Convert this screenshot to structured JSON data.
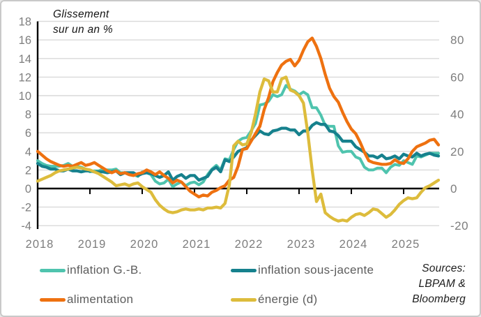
{
  "chart": {
    "title_line1": "Glissement",
    "title_line2": "sur un an %",
    "left_axis": {
      "ticks": [
        18,
        16,
        14,
        12,
        10,
        8,
        6,
        4,
        2,
        0,
        -2,
        -4
      ]
    },
    "right_axis": {
      "ticks": [
        80,
        60,
        40,
        20,
        0,
        -20
      ]
    },
    "x_axis": {
      "years": [
        "2018",
        "2019",
        "2020",
        "2021",
        "2022",
        "2023",
        "2024",
        "2025"
      ]
    }
  },
  "legend": {
    "items": [
      {
        "label": "inflation G.-B.",
        "color": "#4fc4ae"
      },
      {
        "label": "inflation sous-jacente",
        "color": "#16818d"
      },
      {
        "label": "alimentation",
        "color": "#ee7110"
      },
      {
        "label": "énergie (d)",
        "color": "#ddbc3c"
      }
    ]
  },
  "sources": {
    "line1": "Sources:",
    "line2": "LBPAM &",
    "line3": "Bloomberg"
  },
  "chart_data": {
    "type": "line",
    "title": "Glissement sur un an %",
    "x_start": "2018-01",
    "x_end": "2025-09",
    "frequency": "monthly",
    "left_ylim": [
      -4,
      18
    ],
    "right_ylim": [
      -20,
      80
    ],
    "grid": "horizontal",
    "legend_position": "bottom",
    "series": [
      {
        "name": "inflation G.-B.",
        "axis": "left",
        "color": "#4fc4ae",
        "values": [
          3.0,
          2.7,
          2.5,
          2.4,
          2.4,
          2.4,
          2.5,
          2.7,
          2.4,
          2.4,
          2.3,
          2.1,
          1.8,
          1.9,
          1.9,
          2.1,
          2.0,
          2.0,
          2.1,
          1.7,
          1.7,
          1.5,
          1.5,
          1.3,
          1.8,
          1.7,
          1.5,
          0.8,
          0.5,
          0.6,
          1.0,
          0.2,
          0.5,
          0.7,
          0.3,
          0.6,
          0.7,
          0.4,
          0.7,
          1.5,
          2.1,
          2.5,
          2.0,
          3.2,
          3.1,
          4.2,
          5.1,
          5.4,
          5.5,
          6.2,
          7.0,
          9.0,
          9.1,
          9.4,
          10.1,
          9.9,
          10.1,
          11.1,
          10.7,
          10.5,
          10.1,
          10.4,
          10.1,
          8.7,
          8.7,
          7.9,
          6.8,
          6.7,
          6.7,
          4.6,
          3.9,
          4.0,
          4.0,
          3.4,
          3.2,
          2.3,
          2.0,
          2.0,
          2.2,
          2.2,
          1.7,
          2.3,
          2.6,
          2.5,
          3.0,
          2.8,
          2.6,
          3.5,
          3.4,
          3.6,
          3.8,
          3.8,
          3.8
        ]
      },
      {
        "name": "inflation sous-jacente",
        "axis": "left",
        "color": "#16818d",
        "values": [
          2.7,
          2.4,
          2.3,
          2.1,
          2.1,
          1.9,
          1.9,
          2.1,
          1.9,
          1.9,
          1.8,
          1.9,
          1.9,
          1.8,
          1.8,
          1.8,
          1.7,
          1.8,
          1.9,
          1.5,
          1.7,
          1.7,
          1.7,
          1.4,
          1.6,
          1.7,
          1.6,
          1.4,
          1.2,
          1.4,
          1.8,
          0.9,
          1.3,
          1.5,
          1.1,
          1.4,
          1.4,
          0.9,
          1.1,
          1.3,
          2.0,
          2.3,
          1.8,
          3.1,
          2.9,
          3.4,
          4.0,
          4.2,
          4.4,
          5.2,
          5.7,
          6.2,
          5.9,
          5.8,
          6.2,
          6.3,
          6.5,
          6.5,
          6.3,
          6.3,
          5.8,
          6.2,
          6.2,
          6.8,
          7.1,
          6.9,
          6.9,
          6.2,
          6.1,
          5.7,
          5.1,
          5.1,
          5.1,
          4.5,
          4.2,
          3.9,
          3.5,
          3.5,
          3.3,
          3.6,
          3.2,
          3.3,
          3.5,
          3.2,
          3.7,
          3.5,
          3.4,
          3.8,
          3.5,
          3.7,
          3.8,
          3.6,
          3.5
        ]
      },
      {
        "name": "alimentation",
        "axis": "left",
        "color": "#ee7110",
        "values": [
          4.0,
          3.6,
          3.2,
          2.9,
          2.7,
          2.5,
          2.4,
          2.5,
          2.4,
          2.6,
          2.8,
          2.5,
          2.6,
          2.8,
          2.5,
          2.2,
          1.9,
          1.7,
          1.9,
          1.6,
          1.7,
          1.5,
          1.4,
          1.6,
          1.7,
          2.0,
          1.8,
          1.5,
          1.8,
          1.4,
          1.1,
          0.6,
          0.9,
          0.7,
          0.2,
          -0.3,
          -0.6,
          -0.9,
          -0.7,
          -0.8,
          -0.4,
          -0.2,
          0.1,
          0.3,
          0.9,
          1.2,
          2.4,
          4.2,
          4.3,
          5.1,
          5.9,
          6.7,
          8.5,
          9.8,
          11.5,
          12.5,
          13.3,
          13.7,
          13.9,
          13.2,
          13.8,
          14.9,
          15.8,
          16.2,
          15.3,
          14.0,
          12.3,
          10.8,
          9.9,
          9.3,
          8.2,
          7.2,
          6.4,
          5.9,
          5.0,
          3.9,
          3.0,
          2.8,
          2.7,
          2.6,
          2.6,
          2.7,
          3.1,
          2.8,
          2.7,
          3.2,
          4.0,
          4.5,
          4.7,
          4.9,
          5.2,
          5.3,
          4.7
        ]
      },
      {
        "name": "énergie (d)",
        "axis": "right",
        "color": "#ddbc3c",
        "values": [
          4,
          5,
          6,
          7,
          8.5,
          9.5,
          10,
          10.5,
          11,
          11.5,
          11,
          10.5,
          10,
          9,
          8,
          6.5,
          5,
          3.5,
          1.5,
          2,
          2.5,
          1.5,
          2.5,
          3,
          1,
          -0.5,
          -2,
          -6,
          -9,
          -11,
          -12.5,
          -13,
          -12.5,
          -11.5,
          -11,
          -11.5,
          -11.5,
          -11,
          -11.5,
          -10.5,
          -10.5,
          -10,
          -10.5,
          -8,
          2,
          23,
          25.5,
          23.5,
          24,
          30,
          40,
          52,
          59,
          58,
          52,
          52,
          59,
          60,
          53,
          52,
          50,
          46,
          30,
          10,
          -7,
          -3,
          -13,
          -15,
          -16.5,
          -17.5,
          -17,
          -17.5,
          -15.5,
          -14,
          -13.5,
          -14.5,
          -13,
          -11,
          -11.5,
          -13.5,
          -15.5,
          -14,
          -11.5,
          -8.5,
          -6.5,
          -5,
          -5.5,
          -5,
          -2,
          0.5,
          1.5,
          3,
          4.5
        ]
      }
    ]
  },
  "style": {
    "grid_color": "#d9d9d9",
    "axis_color": "#000000",
    "axis_label_color": "#7d7d7d",
    "background": "#ffffff",
    "border_color": "#c9c9c9"
  }
}
